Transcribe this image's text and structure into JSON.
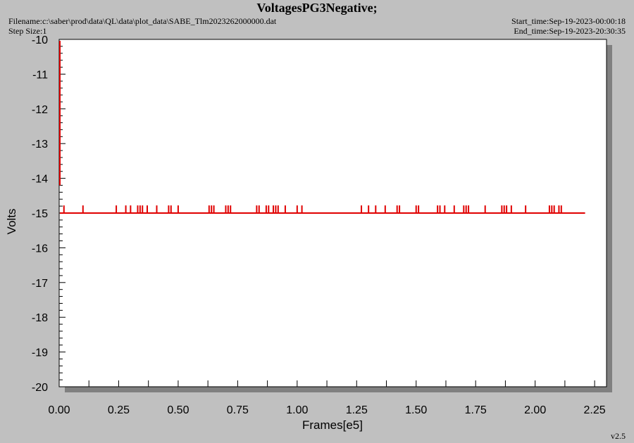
{
  "header": {
    "title": "VoltagesPG3Negative;",
    "filename": "Filename:c:\\saber\\prod\\data\\QL\\data\\plot_data\\SABE_Tlm2023262000000.dat",
    "step_size": "Step Size:1",
    "start_time": "Start_time:Sep-19-2023-00:00:18",
    "end_time": "End_time:Sep-19-2023-20:30:35"
  },
  "footer": {
    "version": "v2.5"
  },
  "colors": {
    "background": "#c0c0c0",
    "plot_bg": "#ffffff",
    "series": "#e00000",
    "shadow": "#808080"
  },
  "chart_data": {
    "type": "line",
    "title": "VoltagesPG3Negative;",
    "xlabel": "Frames[e5]",
    "ylabel": "Volts",
    "xlim": [
      0.0,
      2.3
    ],
    "ylim": [
      -20,
      -10
    ],
    "grid": false,
    "x_ticks": [
      "0.00",
      "0.25",
      "0.50",
      "0.75",
      "1.00",
      "1.25",
      "1.50",
      "1.75",
      "2.00",
      "2.25"
    ],
    "y_ticks": [
      "-10",
      "-11",
      "-12",
      "-13",
      "-14",
      "-15",
      "-16",
      "-17",
      "-18",
      "-19",
      "-20"
    ],
    "series": [
      {
        "baseline": -15.0,
        "x_range": [
          0.0,
          2.21
        ],
        "spikes": [
          0.02,
          0.1,
          0.24,
          0.28,
          0.3,
          0.33,
          0.34,
          0.35,
          0.37,
          0.41,
          0.46,
          0.47,
          0.5,
          0.63,
          0.64,
          0.65,
          0.7,
          0.71,
          0.72,
          0.83,
          0.84,
          0.87,
          0.88,
          0.9,
          0.91,
          0.92,
          0.95,
          1.0,
          1.02,
          1.27,
          1.3,
          1.33,
          1.37,
          1.42,
          1.43,
          1.5,
          1.51,
          1.59,
          1.6,
          1.62,
          1.66,
          1.7,
          1.71,
          1.72,
          1.79,
          1.86,
          1.87,
          1.88,
          1.9,
          1.96,
          2.06,
          2.07,
          2.08,
          2.1,
          2.11
        ],
        "spike_height": 0.22
      }
    ]
  }
}
